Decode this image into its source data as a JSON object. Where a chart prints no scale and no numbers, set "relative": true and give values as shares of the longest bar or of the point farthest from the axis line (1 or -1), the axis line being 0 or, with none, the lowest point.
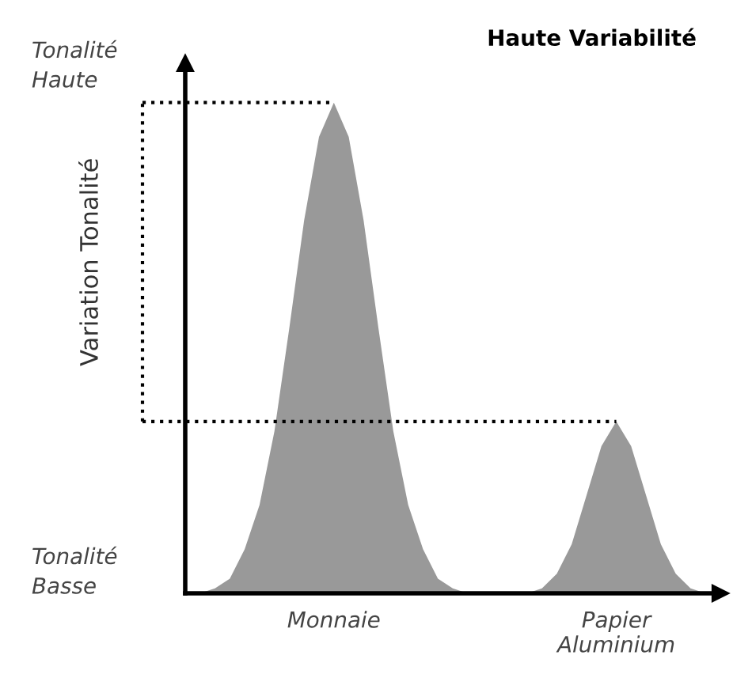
{
  "chart_data": {
    "type": "area",
    "relative": true,
    "title": "Haute Variabilité",
    "ylabel": "Variation Tonalité",
    "annotations": [
      "Tonalité Haute",
      "Tonalité Basse"
    ],
    "categories": [
      null,
      null,
      null,
      null,
      null,
      null,
      null,
      null,
      null,
      null,
      "Monnaie",
      null,
      null,
      null,
      null,
      null,
      null,
      null,
      null,
      null,
      null,
      null,
      null,
      null,
      null,
      null,
      null,
      null,
      null,
      "Papier Aluminium",
      null,
      null,
      null,
      null,
      null,
      null
    ],
    "series": [
      {
        "color": "#999999",
        "values": [
          0,
          0,
          0.01,
          0.03,
          0.09,
          0.18,
          0.33,
          0.54,
          0.76,
          0.93,
          1,
          0.93,
          0.76,
          0.54,
          0.33,
          0.18,
          0.09,
          0.03,
          0.01,
          0,
          0,
          0,
          0,
          0,
          0.01,
          0.04,
          0.1,
          0.2,
          0.3,
          0.35,
          0.3,
          0.2,
          0.1,
          0.04,
          0.01,
          0
        ]
      }
    ],
    "ref_lines": [
      {
        "axis": "y",
        "value": 1,
        "line_style": "dotted",
        "color": "#000000"
      },
      {
        "axis": "y",
        "value": 0.35,
        "line_style": "dotted",
        "color": "#000000"
      }
    ],
    "grid": false
  }
}
